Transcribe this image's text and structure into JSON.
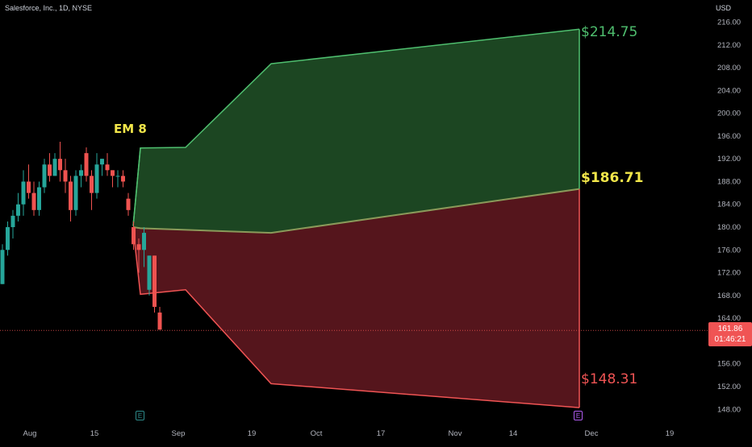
{
  "header": {
    "title": "Salesforce, Inc., 1D, NYSE",
    "currency": "USD"
  },
  "last_price": {
    "value": "161.86",
    "countdown": "01:46:21"
  },
  "annotations": {
    "em_label": "EM 8",
    "upper_target": "$214.75",
    "mid_target": "$186.71",
    "lower_target": "$148.31"
  },
  "events": {
    "earnings_1": "E",
    "earnings_2": "E"
  },
  "colors": {
    "background": "#000000",
    "up_candle": "#26a69a",
    "down_candle": "#ef5350",
    "upper_zone": "#1e4a24",
    "lower_zone": "#5a161e",
    "upper_line": "#4fbf6f",
    "lower_line": "#f05454",
    "mid_line": "#8a9a5a",
    "em_label": "#f2e64a"
  },
  "chart_data": {
    "type": "candlestick",
    "title": "Salesforce, Inc., 1D, NYSE",
    "ylabel": "USD",
    "ylim": [
      146,
      218
    ],
    "y_ticks": [
      "216.00",
      "212.00",
      "208.00",
      "204.00",
      "200.00",
      "196.00",
      "192.00",
      "188.00",
      "184.00",
      "180.00",
      "176.00",
      "172.00",
      "168.00",
      "164.00",
      "160.00",
      "156.00",
      "152.00",
      "148.00"
    ],
    "x_ticks": [
      "Aug",
      "15",
      "Sep",
      "19",
      "Oct",
      "17",
      "Nov",
      "14",
      "Dec",
      "19"
    ],
    "grid": false,
    "candles": [
      {
        "o": 170,
        "h": 177,
        "l": 170,
        "c": 176
      },
      {
        "o": 176,
        "h": 181,
        "l": 175,
        "c": 180
      },
      {
        "o": 180,
        "h": 183,
        "l": 178,
        "c": 182
      },
      {
        "o": 182,
        "h": 186,
        "l": 181,
        "c": 184
      },
      {
        "o": 184,
        "h": 190,
        "l": 182,
        "c": 188
      },
      {
        "o": 188,
        "h": 191,
        "l": 185,
        "c": 186
      },
      {
        "o": 186,
        "h": 188,
        "l": 182,
        "c": 183
      },
      {
        "o": 183,
        "h": 188,
        "l": 182,
        "c": 187
      },
      {
        "o": 187,
        "h": 192,
        "l": 186,
        "c": 191
      },
      {
        "o": 191,
        "h": 193,
        "l": 188,
        "c": 189
      },
      {
        "o": 189,
        "h": 193,
        "l": 189,
        "c": 192
      },
      {
        "o": 192,
        "h": 195,
        "l": 188,
        "c": 190
      },
      {
        "o": 190,
        "h": 192,
        "l": 186,
        "c": 188
      },
      {
        "o": 188,
        "h": 189,
        "l": 181,
        "c": 183
      },
      {
        "o": 183,
        "h": 190,
        "l": 182,
        "c": 189
      },
      {
        "o": 189,
        "h": 191,
        "l": 187,
        "c": 190
      },
      {
        "o": 193,
        "h": 194,
        "l": 188,
        "c": 189
      },
      {
        "o": 189,
        "h": 190,
        "l": 183,
        "c": 186
      },
      {
        "o": 186,
        "h": 193,
        "l": 185,
        "c": 191
      },
      {
        "o": 191,
        "h": 192,
        "l": 189,
        "c": 192
      },
      {
        "o": 191,
        "h": 193,
        "l": 189,
        "c": 190
      },
      {
        "o": 190,
        "h": 190,
        "l": 187,
        "c": 189
      },
      {
        "o": 189,
        "h": 190,
        "l": 187,
        "c": 189
      },
      {
        "o": 189,
        "h": 190,
        "l": 187,
        "c": 188
      },
      {
        "o": 185,
        "h": 186,
        "l": 182,
        "c": 183
      },
      {
        "o": 180,
        "h": 181,
        "l": 176,
        "c": 177
      },
      {
        "o": 177,
        "h": 178,
        "l": 172,
        "c": 176
      },
      {
        "o": 176,
        "h": 180,
        "l": 173,
        "c": 179
      },
      {
        "o": 169,
        "h": 175,
        "l": 168,
        "c": 175
      },
      {
        "o": 175,
        "h": 175,
        "l": 165,
        "c": 166
      },
      {
        "o": 165,
        "h": 166,
        "l": 162,
        "c": 162
      }
    ],
    "expected_move": {
      "start_price": 180,
      "upper": [
        {
          "date": "Aug 24",
          "value": 180.2
        },
        {
          "date": "Aug 25",
          "value": 193.9
        },
        {
          "date": "Sep 1",
          "value": 194.0
        },
        {
          "date": "Sep 22",
          "value": 208.7
        },
        {
          "date": "Nov 29",
          "value": 214.75
        }
      ],
      "middle": [
        {
          "date": "Aug 24",
          "value": 180.0
        },
        {
          "date": "Aug 25",
          "value": 179.8
        },
        {
          "date": "Sep 22",
          "value": 179.0
        },
        {
          "date": "Nov 29",
          "value": 186.71
        }
      ],
      "lower": [
        {
          "date": "Aug 24",
          "value": 179.8
        },
        {
          "date": "Aug 25",
          "value": 168.2
        },
        {
          "date": "Sep 1",
          "value": 169.0
        },
        {
          "date": "Sep 22",
          "value": 152.5
        },
        {
          "date": "Nov 29",
          "value": 148.31
        }
      ]
    },
    "current_price": 161.86
  }
}
